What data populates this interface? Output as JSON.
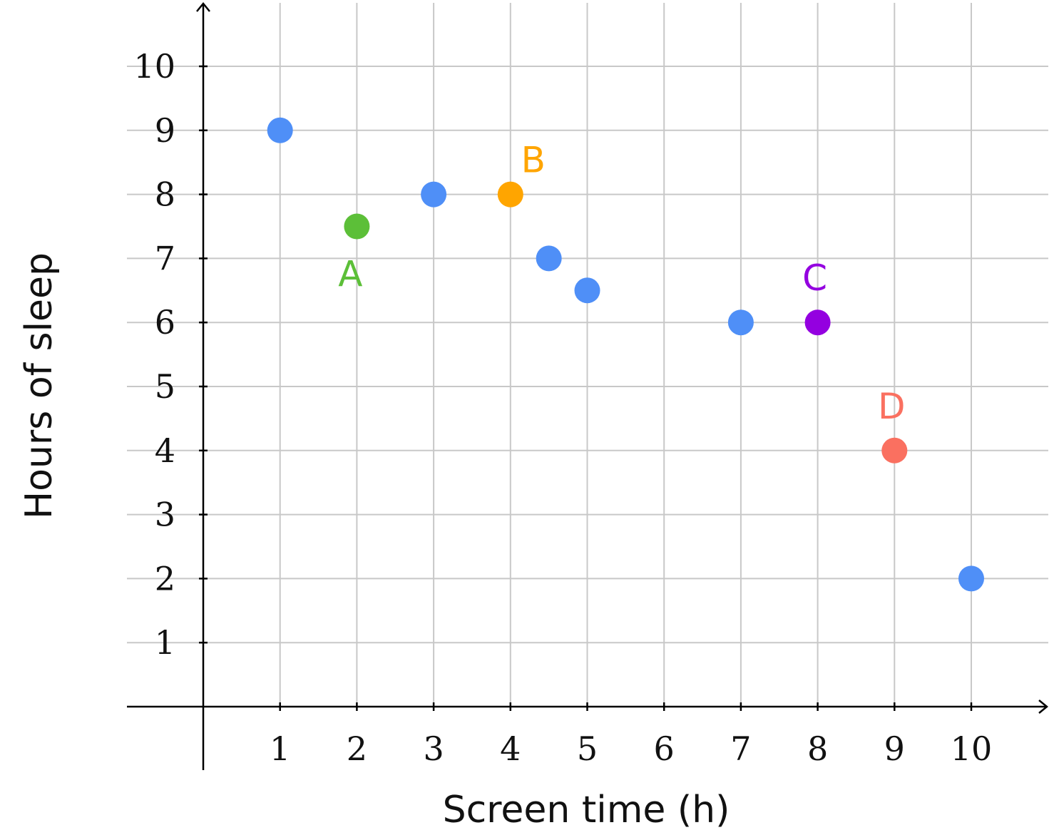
{
  "chart_data": {
    "type": "scatter",
    "xlabel": "Screen time (h)",
    "ylabel": "Hours of sleep",
    "xlim": [
      0,
      11
    ],
    "ylim": [
      0,
      11
    ],
    "x_ticks": [
      "1",
      "2",
      "3",
      "4",
      "5",
      "6",
      "7",
      "8",
      "9",
      "10"
    ],
    "y_ticks": [
      "1",
      "2",
      "3",
      "4",
      "5",
      "6",
      "7",
      "8",
      "9",
      "10"
    ],
    "grid": true,
    "points": [
      {
        "x": 1,
        "y": 9,
        "color": "#4f8ff7",
        "label": ""
      },
      {
        "x": 2,
        "y": 7.5,
        "color": "#5cbf38",
        "label": "A",
        "label_position": "below"
      },
      {
        "x": 3,
        "y": 8,
        "color": "#4f8ff7",
        "label": ""
      },
      {
        "x": 4,
        "y": 8,
        "color": "#ffa500",
        "label": "B",
        "label_position": "above-right"
      },
      {
        "x": 4.5,
        "y": 7,
        "color": "#4f8ff7",
        "label": ""
      },
      {
        "x": 5,
        "y": 6.5,
        "color": "#4f8ff7",
        "label": ""
      },
      {
        "x": 7,
        "y": 6,
        "color": "#4f8ff7",
        "label": ""
      },
      {
        "x": 8,
        "y": 6,
        "color": "#9400e0",
        "label": "C",
        "label_position": "above"
      },
      {
        "x": 9,
        "y": 4,
        "color": "#fa7060",
        "label": "D",
        "label_position": "above"
      },
      {
        "x": 10,
        "y": 2,
        "color": "#4f8ff7",
        "label": ""
      }
    ]
  }
}
